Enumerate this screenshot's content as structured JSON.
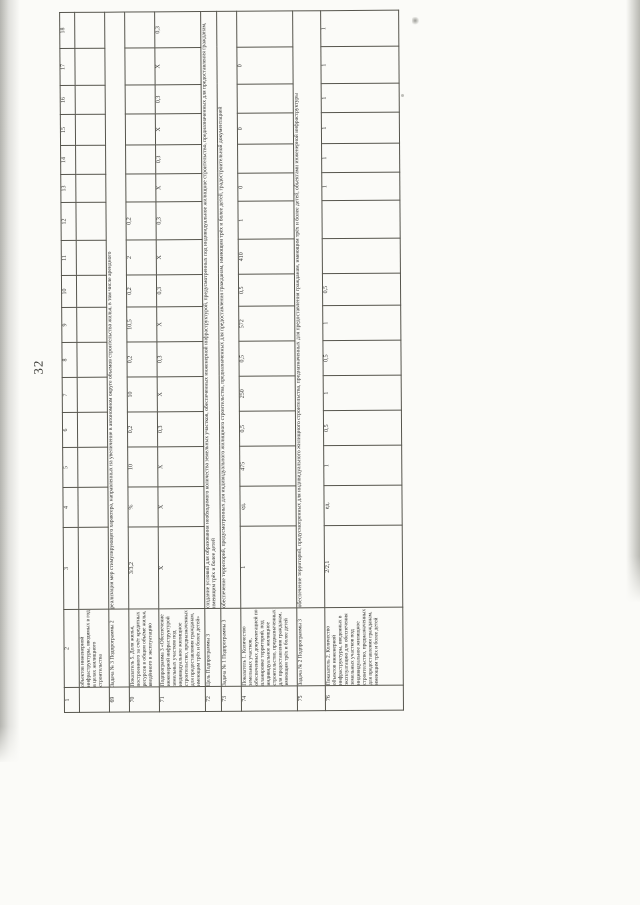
{
  "page": {
    "number": "32"
  },
  "table": {
    "column_numbers": [
      "1",
      "2",
      "3",
      "4",
      "5",
      "6",
      "7",
      "8",
      "9",
      "10",
      "11",
      "12",
      "13",
      "14",
      "15",
      "16",
      "17",
      "18"
    ],
    "rows": [
      {
        "num": "",
        "desc": "объектов инженерной инфраструктуры, вводимых в год в целях жилищного строительства",
        "type": "cells",
        "cells": [
          "",
          "",
          "",
          "",
          "",
          "",
          "",
          "",
          "",
          "",
          "",
          "",
          "",
          "",
          "",
          ""
        ]
      },
      {
        "num": "69",
        "desc": "Задача № 3 Подпрограммы 2",
        "type": "merged",
        "text": "реализация мер стимулирующего характера, направленных на увеличение в автономном округе объемов строительства жилья, в том числе арендного"
      },
      {
        "num": "70",
        "desc": "Показатель 5. Доля жилья, построенного за счёт кредитных ресурсов в общем объёме жилья, введённого в эксплуатацию",
        "type": "cells",
        "cells": [
          "3/3,2",
          "%",
          "10",
          "0,2",
          "10",
          "0,2",
          "10,5",
          "0,2",
          "2",
          "0,2",
          "",
          "",
          "",
          "",
          "",
          ""
        ]
      },
      {
        "num": "71",
        "desc": "Подпрограмма 3 «Обеспечение инженерной инфраструктурой земельных участков под индивидуальное жилищное строительство, предназначенных для предоставления гражданам, имеющим трёх и более детей»",
        "type": "cells",
        "cells": [
          "Х",
          "Х",
          "Х",
          "0,3",
          "Х",
          "0,3",
          "Х",
          "0,3",
          "Х",
          "0,3",
          "Х",
          "0,3",
          "Х",
          "0,3",
          "Х",
          "0,3"
        ]
      },
      {
        "num": "72",
        "desc": "Цель Подпрограммы 3",
        "type": "merged",
        "text": "создание условий для образования необходимого количества земельных участков, обеспеченных инженерной инфраструктурой, предусмотренных под индивидуальное жилищное строительство, предназначенных для предоставления гражданам, имеющим трёх и более детей"
      },
      {
        "num": "73",
        "desc": "Задача № 1 Подпрограммы 3",
        "type": "merged",
        "text": "обеспечение территорий, предусмотренных для индивидуального жилищного строительства, предназначенных для предоставления гражданам, имеющим трёх и более детей, градостроительной документацией"
      },
      {
        "num": "74",
        "desc": "Показатель 1. Количество земельных участков, обеспеченных документацией по планировке территорий, под индивидуальное жилищное строительство, предназначенных для предоставления гражданам, имеющим трёх и более детей",
        "type": "cells",
        "cells": [
          "1",
          "ед.",
          "475",
          "0,5",
          "250",
          "0,5",
          "572",
          "0,5",
          "410",
          "1",
          "0",
          "",
          "0",
          "",
          "0",
          ""
        ]
      },
      {
        "num": "75",
        "desc": "Задача № 2 Подпрограммы 3",
        "type": "merged",
        "text": "обеспечение территорий, предусмотренных для индивидуального жилищного строительства, предназначенных для предоставления гражданам, имеющим трёх и более детей, объектами инженерной инфраструктуры"
      },
      {
        "num": "76",
        "desc": "Показатель 2. Количество объектов инженерной инфраструктуры, введенных в эксплуатацию для обеспечения земельных участков под индивидуальное жилищное строительство, предназначенных для предоставления гражданам, имеющим трёх и более детей",
        "type": "cells",
        "cells": [
          "2/2,1",
          "ед.",
          "1",
          "0,5",
          "1",
          "0,5",
          "1",
          "0,5",
          "",
          "",
          "1",
          "1",
          "1",
          "1",
          "1",
          "1"
        ]
      }
    ]
  }
}
